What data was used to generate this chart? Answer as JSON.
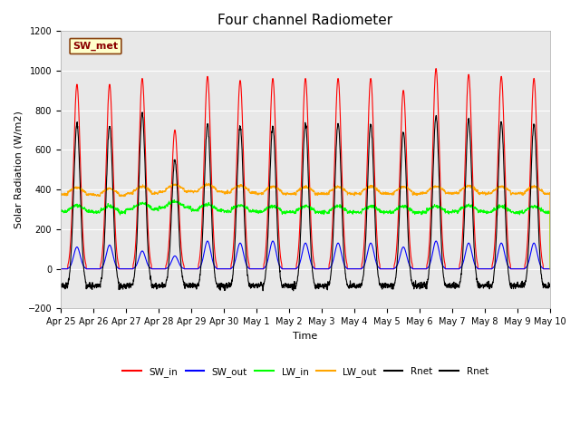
{
  "title": "Four channel Radiometer",
  "xlabel": "Time",
  "ylabel": "Solar Radiation (W/m2)",
  "ylim": [
    -200,
    1200
  ],
  "annotation": "SW_met",
  "x_tick_labels": [
    "Apr 25",
    "Apr 26",
    "Apr 27",
    "Apr 28",
    "Apr 29",
    "Apr 30",
    "May 1",
    "May 2",
    "May 3",
    "May 4",
    "May 5",
    "May 6",
    "May 7",
    "May 8",
    "May 9",
    "May 10"
  ],
  "background_color": "#ffffff",
  "plot_bg_color": "#e8e8e8",
  "yticks": [
    -200,
    0,
    200,
    400,
    600,
    800,
    1000,
    1200
  ],
  "title_fontsize": 11,
  "label_fontsize": 8,
  "tick_fontsize": 7,
  "legend_entries": [
    "SW_in",
    "SW_out",
    "LW_in",
    "LW_out",
    "Rnet",
    "Rnet"
  ],
  "legend_colors": [
    "red",
    "blue",
    "lime",
    "orange",
    "black",
    "black"
  ],
  "sw_in_peaks": [
    930,
    930,
    960,
    700,
    970,
    950,
    960,
    960,
    960,
    960,
    900,
    1010,
    980,
    970,
    960
  ],
  "sw_out_peaks": [
    110,
    120,
    90,
    65,
    140,
    130,
    140,
    130,
    130,
    130,
    110,
    140,
    130,
    130,
    130
  ],
  "lw_in_base": [
    290,
    285,
    300,
    310,
    295,
    290,
    285,
    285,
    285,
    285,
    285,
    285,
    290,
    285,
    285
  ],
  "lw_out_base": [
    375,
    370,
    380,
    390,
    390,
    385,
    380,
    378,
    378,
    380,
    378,
    382,
    382,
    380,
    380
  ]
}
